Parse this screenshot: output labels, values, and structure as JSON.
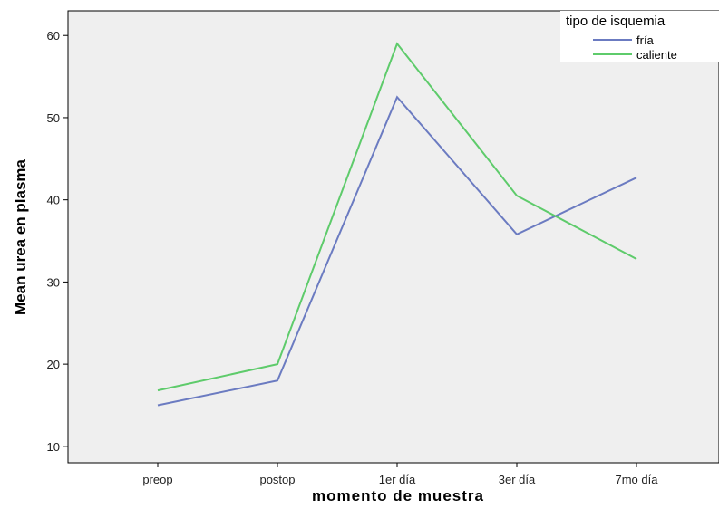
{
  "chart_data": {
    "type": "line",
    "xlabel": "momento de muestra",
    "ylabel": "Mean urea en plasma",
    "categories": [
      "preop",
      "postop",
      "1er día",
      "3er día",
      "7mo día"
    ],
    "ylim": [
      8,
      63
    ],
    "yticks": [
      10,
      20,
      30,
      40,
      50,
      60
    ],
    "grid": false,
    "legend": {
      "title": "tipo de isquemia",
      "position": "top-right"
    },
    "series": [
      {
        "name": "fría",
        "color": "#6b7bc1",
        "values": [
          15.0,
          18.0,
          52.5,
          35.8,
          42.7
        ]
      },
      {
        "name": "caliente",
        "color": "#5ecb6b",
        "values": [
          16.8,
          20.0,
          59.0,
          40.5,
          32.8
        ]
      }
    ]
  }
}
